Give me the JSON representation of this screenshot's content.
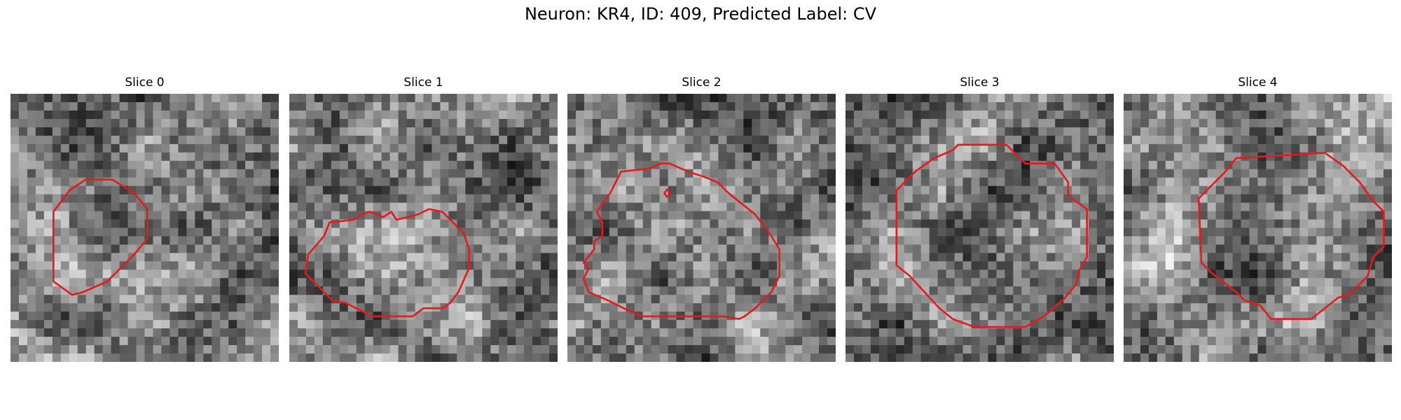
{
  "figure": {
    "title": "Neuron: KR4, ID: 409, Predicted Label: CV"
  },
  "panels": [
    {
      "title": "Slice 0",
      "seed": 11,
      "contour_color": "#e41a1c",
      "contours": [
        [
          [
            0.16,
            0.44
          ],
          [
            0.16,
            0.7
          ],
          [
            0.23,
            0.75
          ],
          [
            0.27,
            0.74
          ],
          [
            0.36,
            0.7
          ],
          [
            0.4,
            0.66
          ],
          [
            0.46,
            0.6
          ],
          [
            0.51,
            0.54
          ],
          [
            0.51,
            0.43
          ],
          [
            0.46,
            0.37
          ],
          [
            0.38,
            0.32
          ],
          [
            0.28,
            0.32
          ],
          [
            0.22,
            0.36
          ]
        ]
      ]
    },
    {
      "title": "Slice 1",
      "seed": 23,
      "contour_color": "#e41a1c",
      "contours": [
        [
          [
            0.07,
            0.6
          ],
          [
            0.13,
            0.53
          ],
          [
            0.15,
            0.48
          ],
          [
            0.24,
            0.47
          ],
          [
            0.27,
            0.45
          ],
          [
            0.3,
            0.44
          ],
          [
            0.35,
            0.46
          ],
          [
            0.38,
            0.44
          ],
          [
            0.4,
            0.47
          ],
          [
            0.48,
            0.45
          ],
          [
            0.52,
            0.43
          ],
          [
            0.57,
            0.44
          ],
          [
            0.65,
            0.52
          ],
          [
            0.67,
            0.58
          ],
          [
            0.67,
            0.65
          ],
          [
            0.63,
            0.74
          ],
          [
            0.6,
            0.78
          ],
          [
            0.57,
            0.8
          ],
          [
            0.5,
            0.8
          ],
          [
            0.46,
            0.83
          ],
          [
            0.31,
            0.83
          ],
          [
            0.21,
            0.78
          ],
          [
            0.16,
            0.77
          ],
          [
            0.1,
            0.71
          ],
          [
            0.06,
            0.67
          ]
        ]
      ]
    },
    {
      "title": "Slice 2",
      "seed": 37,
      "contour_color": "#e41a1c",
      "contours": [
        [
          [
            0.11,
            0.44
          ],
          [
            0.16,
            0.37
          ],
          [
            0.2,
            0.29
          ],
          [
            0.3,
            0.28
          ],
          [
            0.35,
            0.26
          ],
          [
            0.38,
            0.26
          ],
          [
            0.45,
            0.29
          ],
          [
            0.51,
            0.31
          ],
          [
            0.56,
            0.33
          ],
          [
            0.6,
            0.37
          ],
          [
            0.7,
            0.45
          ],
          [
            0.76,
            0.53
          ],
          [
            0.79,
            0.58
          ],
          [
            0.79,
            0.68
          ],
          [
            0.76,
            0.74
          ],
          [
            0.7,
            0.8
          ],
          [
            0.66,
            0.83
          ],
          [
            0.64,
            0.84
          ],
          [
            0.58,
            0.83
          ],
          [
            0.54,
            0.83
          ],
          [
            0.28,
            0.83
          ],
          [
            0.23,
            0.81
          ],
          [
            0.19,
            0.79
          ],
          [
            0.15,
            0.77
          ],
          [
            0.08,
            0.74
          ],
          [
            0.06,
            0.69
          ],
          [
            0.08,
            0.65
          ],
          [
            0.06,
            0.63
          ],
          [
            0.1,
            0.58
          ],
          [
            0.1,
            0.55
          ],
          [
            0.13,
            0.53
          ],
          [
            0.13,
            0.48
          ]
        ],
        [
          [
            0.361,
            0.371
          ],
          [
            0.372,
            0.357
          ],
          [
            0.383,
            0.371
          ],
          [
            0.372,
            0.385
          ]
        ]
      ]
    },
    {
      "title": "Slice 3",
      "seed": 53,
      "contour_color": "#e41a1c",
      "contours": [
        [
          [
            0.19,
            0.36
          ],
          [
            0.26,
            0.29
          ],
          [
            0.33,
            0.24
          ],
          [
            0.4,
            0.21
          ],
          [
            0.42,
            0.19
          ],
          [
            0.6,
            0.19
          ],
          [
            0.67,
            0.26
          ],
          [
            0.78,
            0.26
          ],
          [
            0.83,
            0.33
          ],
          [
            0.83,
            0.38
          ],
          [
            0.9,
            0.43
          ],
          [
            0.9,
            0.61
          ],
          [
            0.87,
            0.66
          ],
          [
            0.86,
            0.71
          ],
          [
            0.81,
            0.77
          ],
          [
            0.74,
            0.83
          ],
          [
            0.67,
            0.87
          ],
          [
            0.48,
            0.87
          ],
          [
            0.4,
            0.84
          ],
          [
            0.35,
            0.8
          ],
          [
            0.24,
            0.68
          ],
          [
            0.19,
            0.64
          ]
        ]
      ]
    },
    {
      "title": "Slice 4",
      "seed": 71,
      "contour_color": "#e41a1c",
      "contours": [
        [
          [
            0.28,
            0.39
          ],
          [
            0.38,
            0.29
          ],
          [
            0.42,
            0.24
          ],
          [
            0.75,
            0.22
          ],
          [
            0.82,
            0.27
          ],
          [
            0.88,
            0.33
          ],
          [
            0.93,
            0.4
          ],
          [
            0.97,
            0.44
          ],
          [
            0.97,
            0.57
          ],
          [
            0.93,
            0.61
          ],
          [
            0.91,
            0.68
          ],
          [
            0.84,
            0.75
          ],
          [
            0.8,
            0.76
          ],
          [
            0.75,
            0.8
          ],
          [
            0.7,
            0.84
          ],
          [
            0.55,
            0.84
          ],
          [
            0.51,
            0.79
          ],
          [
            0.45,
            0.77
          ],
          [
            0.42,
            0.74
          ],
          [
            0.33,
            0.67
          ],
          [
            0.29,
            0.63
          ]
        ]
      ]
    }
  ]
}
